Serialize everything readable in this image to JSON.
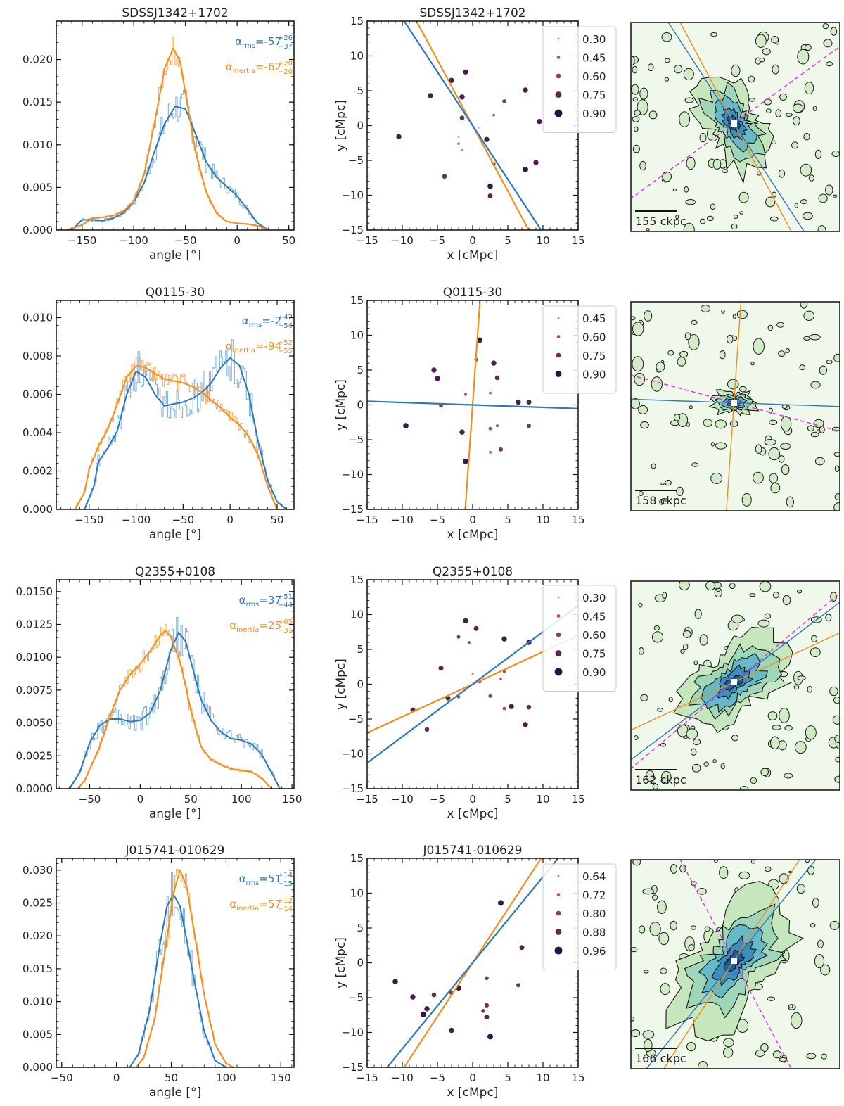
{
  "colors": {
    "rms": "#2e78b7",
    "inertia": "#f28e1c",
    "inertia_light": "#f7b36a",
    "rms_light": "#8ab8e0",
    "dashed": "#e62ae6",
    "axis": "#111111"
  },
  "chart_data": [
    {
      "row": 1,
      "panel": "histogram",
      "type": "line",
      "title": "SDSSJ1342+1702",
      "xlabel": "angle [°]",
      "ylabel": "",
      "xlim": [
        -175,
        55
      ],
      "ylim": [
        0,
        0.0245
      ],
      "xticks": [
        -150,
        -100,
        -50,
        0,
        50
      ],
      "yticks": [
        0.0,
        0.005,
        0.01,
        0.015,
        0.02
      ],
      "ytick_labels": [
        "0.000",
        "0.005",
        "0.010",
        "0.015",
        "0.020"
      ],
      "annotation_rms": {
        "symbol": "α",
        "sub": "rms",
        "text": "=-57",
        "sup": "+26",
        "low": "−37"
      },
      "annotation_inertia": {
        "symbol": "α",
        "sub": "inertia",
        "text": "=-62",
        "sup": "+20",
        "low": "−20"
      },
      "series": [
        {
          "name": "rms",
          "x": [
            -160,
            -150,
            -140,
            -130,
            -120,
            -110,
            -100,
            -90,
            -80,
            -70,
            -60,
            -50,
            -40,
            -30,
            -20,
            -10,
            0,
            10,
            20,
            30
          ],
          "values": [
            0.0,
            0.0012,
            0.0012,
            0.0011,
            0.0014,
            0.002,
            0.0033,
            0.0055,
            0.0092,
            0.0125,
            0.0145,
            0.0142,
            0.0112,
            0.008,
            0.0062,
            0.0051,
            0.004,
            0.0024,
            0.0008,
            0.0
          ]
        },
        {
          "name": "inertia",
          "x": [
            -165,
            -150,
            -140,
            -130,
            -120,
            -110,
            -100,
            -90,
            -80,
            -70,
            -62,
            -55,
            -50,
            -40,
            -30,
            -20,
            -10,
            0,
            10,
            20,
            30
          ],
          "values": [
            0.0,
            0.0006,
            0.0014,
            0.0015,
            0.0017,
            0.0022,
            0.0034,
            0.0065,
            0.0125,
            0.019,
            0.0213,
            0.0198,
            0.016,
            0.009,
            0.0045,
            0.002,
            0.001,
            0.0008,
            0.0007,
            0.0005,
            0.0
          ]
        }
      ]
    },
    {
      "row": 1,
      "panel": "scatter",
      "type": "scatter",
      "title": "SDSSJ1342+1702",
      "xlabel": "x [cMpc]",
      "ylabel": "y [cMpc]",
      "xlim": [
        -15,
        15
      ],
      "ylim": [
        -15,
        15
      ],
      "ticks": [
        -15,
        -10,
        -5,
        0,
        5,
        10,
        15
      ],
      "legend": [
        "0.30",
        "0.45",
        "0.60",
        "0.75",
        "0.90"
      ],
      "rms_angle_deg": -57,
      "inertia_angle_deg": -62,
      "points": [
        [
          -3,
          6.5
        ],
        [
          -1,
          7.7
        ],
        [
          -6,
          4.3
        ],
        [
          -1.5,
          4.1
        ],
        [
          -10.5,
          -1.6
        ],
        [
          -1.5,
          1.1
        ],
        [
          -2,
          -1.6
        ],
        [
          -2,
          -2.6
        ],
        [
          -1.5,
          -3.5
        ],
        [
          -4,
          -7.3
        ],
        [
          3,
          1.5
        ],
        [
          2,
          -2
        ],
        [
          3,
          -5.5
        ],
        [
          2.5,
          -8.7
        ],
        [
          2.5,
          -10.1
        ],
        [
          4.5,
          3.5
        ],
        [
          7.5,
          5.1
        ],
        [
          9.5,
          0.6
        ],
        [
          7.5,
          -6.3
        ],
        [
          9,
          -5.3
        ],
        [
          0.8,
          -0.3
        ]
      ],
      "weights": [
        0.85,
        0.85,
        0.85,
        0.85,
        0.85,
        0.75,
        0.3,
        0.4,
        0.3,
        0.75,
        0.45,
        0.85,
        0.6,
        0.9,
        0.8,
        0.65,
        0.85,
        0.85,
        0.9,
        0.85,
        0.3
      ]
    },
    {
      "row": 1,
      "panel": "map",
      "type": "heatmap",
      "scale_label": "155 ckpc",
      "rms_angle_deg": -57,
      "inertia_angle_deg": -62,
      "dashed_angle_deg": 36,
      "blob_scale": 0.85
    },
    {
      "row": 2,
      "panel": "histogram",
      "type": "line",
      "title": "Q0115-30",
      "xlabel": "angle [°]",
      "ylabel": "",
      "xlim": [
        -185,
        68
      ],
      "ylim": [
        0,
        0.0109
      ],
      "xticks": [
        -150,
        -100,
        -50,
        0,
        50
      ],
      "yticks": [
        0.0,
        0.002,
        0.004,
        0.006,
        0.008,
        0.01
      ],
      "ytick_labels": [
        "0.000",
        "0.002",
        "0.004",
        "0.006",
        "0.008",
        "0.010"
      ],
      "annotation_rms": {
        "symbol": "α",
        "sub": "rms",
        "text": "=-2",
        "sup": "+42",
        "low": "−54"
      },
      "annotation_inertia": {
        "symbol": "α",
        "sub": "inertia",
        "text": "=-94",
        "sup": "+52",
        "low": "−55"
      },
      "series": [
        {
          "name": "rms",
          "x": [
            -155,
            -145,
            -140,
            -130,
            -120,
            -110,
            -100,
            -90,
            -80,
            -70,
            -60,
            -50,
            -40,
            -30,
            -20,
            -10,
            0,
            10,
            20,
            30,
            40,
            50,
            60
          ],
          "values": [
            0.0,
            0.0012,
            0.0025,
            0.0032,
            0.0041,
            0.006,
            0.0072,
            0.0069,
            0.006,
            0.0054,
            0.0055,
            0.0056,
            0.0058,
            0.0061,
            0.0066,
            0.0074,
            0.0079,
            0.0075,
            0.006,
            0.0035,
            0.0015,
            0.0004,
            0.0
          ]
        },
        {
          "name": "inertia",
          "x": [
            -165,
            -155,
            -150,
            -140,
            -130,
            -120,
            -110,
            -100,
            -90,
            -80,
            -70,
            -60,
            -50,
            -40,
            -30,
            -20,
            -10,
            0,
            10,
            20,
            30,
            40,
            50
          ],
          "values": [
            0.0,
            0.0009,
            0.0021,
            0.0033,
            0.0042,
            0.0055,
            0.0069,
            0.0075,
            0.0074,
            0.0071,
            0.0068,
            0.0067,
            0.0066,
            0.0064,
            0.0061,
            0.0057,
            0.0053,
            0.0048,
            0.0044,
            0.0038,
            0.0028,
            0.0012,
            0.0
          ]
        }
      ]
    },
    {
      "row": 2,
      "panel": "scatter",
      "type": "scatter",
      "title": "Q0115-30",
      "xlabel": "x [cMpc]",
      "ylabel": "y [cMpc]",
      "xlim": [
        -15,
        15
      ],
      "ylim": [
        -15,
        15
      ],
      "ticks": [
        -15,
        -10,
        -5,
        0,
        5,
        10,
        15
      ],
      "legend": [
        "0.45",
        "0.60",
        "0.75",
        "0.90"
      ],
      "rms_angle_deg": -2,
      "inertia_angle_deg": 86,
      "points": [
        [
          1,
          9.3
        ],
        [
          0.5,
          6.5
        ],
        [
          -5.5,
          5
        ],
        [
          -5,
          3.8
        ],
        [
          3,
          6
        ],
        [
          3.5,
          3.9
        ],
        [
          -1,
          1.5
        ],
        [
          2.5,
          1.7
        ],
        [
          -4.5,
          -0.1
        ],
        [
          6.5,
          0.4
        ],
        [
          8,
          0.4
        ],
        [
          -9.5,
          -3
        ],
        [
          -1.5,
          -3.9
        ],
        [
          2.5,
          -3.4
        ],
        [
          3.5,
          -3
        ],
        [
          4,
          -6.4
        ],
        [
          2.5,
          -6.8
        ],
        [
          8,
          -3
        ],
        [
          -1,
          -8.1
        ]
      ],
      "weights": [
        0.9,
        0.6,
        0.85,
        0.85,
        0.85,
        0.75,
        0.5,
        0.45,
        0.65,
        0.85,
        0.8,
        0.9,
        0.85,
        0.55,
        0.5,
        0.7,
        0.45,
        0.7,
        0.9
      ]
    },
    {
      "row": 2,
      "panel": "map",
      "type": "heatmap",
      "scale_label": "158 ckpc",
      "rms_angle_deg": -2,
      "inertia_angle_deg": 86,
      "dashed_angle_deg": -15,
      "blob_scale": 0.35
    },
    {
      "row": 3,
      "panel": "histogram",
      "type": "line",
      "title": "Q2355+0108",
      "xlabel": "angle [°]",
      "ylabel": "",
      "xlim": [
        -83,
        152
      ],
      "ylim": [
        0,
        0.0159
      ],
      "xticks": [
        -50,
        0,
        50,
        100,
        150
      ],
      "yticks": [
        0.0,
        0.0025,
        0.005,
        0.0075,
        0.01,
        0.0125,
        0.015
      ],
      "ytick_labels": [
        "0.0000",
        "0.0025",
        "0.0050",
        "0.0075",
        "0.0100",
        "0.0125",
        "0.0150"
      ],
      "annotation_rms": {
        "symbol": "α",
        "sub": "rms",
        "text": "=37",
        "sup": "+51",
        "low": "−44"
      },
      "annotation_inertia": {
        "symbol": "α",
        "sub": "inertia",
        "text": "=25",
        "sup": "+65",
        "low": "−31"
      },
      "series": [
        {
          "name": "rms",
          "x": [
            -70,
            -60,
            -50,
            -40,
            -30,
            -20,
            -10,
            0,
            10,
            20,
            30,
            38,
            45,
            50,
            60,
            70,
            80,
            90,
            100,
            110,
            120,
            130,
            138
          ],
          "values": [
            0.0,
            0.0012,
            0.0035,
            0.0048,
            0.0053,
            0.0053,
            0.0051,
            0.0052,
            0.0058,
            0.0075,
            0.0105,
            0.0119,
            0.0112,
            0.0097,
            0.0068,
            0.0052,
            0.0043,
            0.0038,
            0.0037,
            0.0034,
            0.0026,
            0.0012,
            0.0
          ]
        },
        {
          "name": "inertia",
          "x": [
            -62,
            -55,
            -50,
            -40,
            -30,
            -20,
            -10,
            0,
            10,
            20,
            25,
            30,
            40,
            50,
            60,
            70,
            80,
            90,
            100,
            110,
            120,
            130
          ],
          "values": [
            0.0,
            0.0006,
            0.0015,
            0.0032,
            0.0055,
            0.0075,
            0.0087,
            0.0095,
            0.0105,
            0.0117,
            0.012,
            0.0116,
            0.0095,
            0.006,
            0.0032,
            0.0022,
            0.0018,
            0.0015,
            0.0014,
            0.0013,
            0.0008,
            0.0
          ]
        }
      ]
    },
    {
      "row": 3,
      "panel": "scatter",
      "type": "scatter",
      "title": "Q2355+0108",
      "xlabel": "x [cMpc]",
      "ylabel": "y [cMpc]",
      "xlim": [
        -15,
        15
      ],
      "ylim": [
        -15,
        15
      ],
      "ticks": [
        -15,
        -10,
        -5,
        0,
        5,
        10,
        15
      ],
      "legend": [
        "0.30",
        "0.45",
        "0.60",
        "0.75",
        "0.90"
      ],
      "rms_angle_deg": 37,
      "inertia_angle_deg": 25,
      "points": [
        [
          -1,
          9.1
        ],
        [
          0.5,
          8
        ],
        [
          -2,
          6.8
        ],
        [
          -0.5,
          6
        ],
        [
          4.5,
          6.5
        ],
        [
          8,
          6
        ],
        [
          -4.5,
          2.3
        ],
        [
          0,
          1.5
        ],
        [
          1,
          0.4
        ],
        [
          4,
          0.8
        ],
        [
          4.5,
          1.8
        ],
        [
          -3.5,
          -2
        ],
        [
          -2,
          -1.8
        ],
        [
          -8.5,
          -3.7
        ],
        [
          -6.5,
          -6.5
        ],
        [
          2.5,
          -1.7
        ],
        [
          4.5,
          -3.5
        ],
        [
          5.5,
          -3.2
        ],
        [
          8,
          -3.3
        ],
        [
          7.5,
          -5.8
        ]
      ],
      "weights": [
        0.85,
        0.8,
        0.6,
        0.5,
        0.85,
        0.85,
        0.8,
        0.35,
        0.6,
        0.45,
        0.5,
        0.8,
        0.55,
        0.8,
        0.75,
        0.6,
        0.55,
        0.85,
        0.75,
        0.85
      ]
    },
    {
      "row": 3,
      "panel": "map",
      "type": "heatmap",
      "scale_label": "162 ckpc",
      "rms_angle_deg": 37,
      "inertia_angle_deg": 25,
      "dashed_angle_deg": 40,
      "blob_scale": 1.0
    },
    {
      "row": 4,
      "panel": "histogram",
      "type": "line",
      "title": "J015741-010629",
      "xlabel": "angle [°]",
      "ylabel": "",
      "xlim": [
        -55,
        162
      ],
      "ylim": [
        0,
        0.0318
      ],
      "xticks": [
        -50,
        0,
        50,
        100,
        150
      ],
      "yticks": [
        0.0,
        0.005,
        0.01,
        0.015,
        0.02,
        0.025,
        0.03
      ],
      "ytick_labels": [
        "0.000",
        "0.005",
        "0.010",
        "0.015",
        "0.020",
        "0.025",
        "0.030"
      ],
      "annotation_rms": {
        "symbol": "α",
        "sub": "rms",
        "text": "=51",
        "sup": "+14",
        "low": "−15"
      },
      "annotation_inertia": {
        "symbol": "α",
        "sub": "inertia",
        "text": "=57",
        "sup": "+12",
        "low": "−14"
      },
      "series": [
        {
          "name": "rms",
          "x": [
            12,
            20,
            30,
            40,
            46,
            52,
            58,
            64,
            70,
            80,
            90,
            100
          ],
          "values": [
            0.0,
            0.002,
            0.0085,
            0.019,
            0.0245,
            0.0263,
            0.0245,
            0.0195,
            0.014,
            0.0055,
            0.001,
            0.0
          ]
        },
        {
          "name": "inertia",
          "x": [
            18,
            25,
            35,
            45,
            52,
            58,
            64,
            70,
            80,
            90,
            100,
            107
          ],
          "values": [
            0.0,
            0.0015,
            0.0075,
            0.0185,
            0.0265,
            0.03,
            0.0275,
            0.0215,
            0.011,
            0.0035,
            0.0006,
            0.0
          ]
        }
      ]
    },
    {
      "row": 4,
      "panel": "scatter",
      "type": "scatter",
      "title": "J015741-010629",
      "xlabel": "x [cMpc]",
      "ylabel": "y [cMpc]",
      "xlim": [
        -15,
        15
      ],
      "ylim": [
        -15,
        15
      ],
      "ticks": [
        -15,
        -10,
        -5,
        0,
        5,
        10,
        15
      ],
      "legend": [
        "0.64",
        "0.72",
        "0.80",
        "0.88",
        "0.96"
      ],
      "rms_angle_deg": 51,
      "inertia_angle_deg": 57,
      "points": [
        [
          4,
          8.6
        ],
        [
          7,
          2.2
        ],
        [
          -11,
          -2.7
        ],
        [
          -8.5,
          -4.9
        ],
        [
          -6.5,
          -6.6
        ],
        [
          -7,
          -7.4
        ],
        [
          -5.5,
          -4.6
        ],
        [
          -3,
          -4.3
        ],
        [
          -2,
          -3.6
        ],
        [
          -3,
          -9.7
        ],
        [
          2,
          -2.2
        ],
        [
          6.5,
          -3.2
        ],
        [
          2,
          -6.1
        ],
        [
          1.5,
          -6.9
        ],
        [
          2,
          -7.8
        ],
        [
          2.5,
          -10.6
        ]
      ],
      "weights": [
        0.92,
        0.8,
        0.88,
        0.85,
        0.85,
        0.92,
        0.75,
        0.7,
        0.9,
        0.85,
        0.66,
        0.7,
        0.72,
        0.66,
        0.8,
        0.92
      ]
    },
    {
      "row": 4,
      "panel": "map",
      "type": "heatmap",
      "scale_label": "166 ckpc",
      "rms_angle_deg": 51,
      "inertia_angle_deg": 57,
      "dashed_angle_deg": -62,
      "blob_scale": 1.25
    }
  ]
}
